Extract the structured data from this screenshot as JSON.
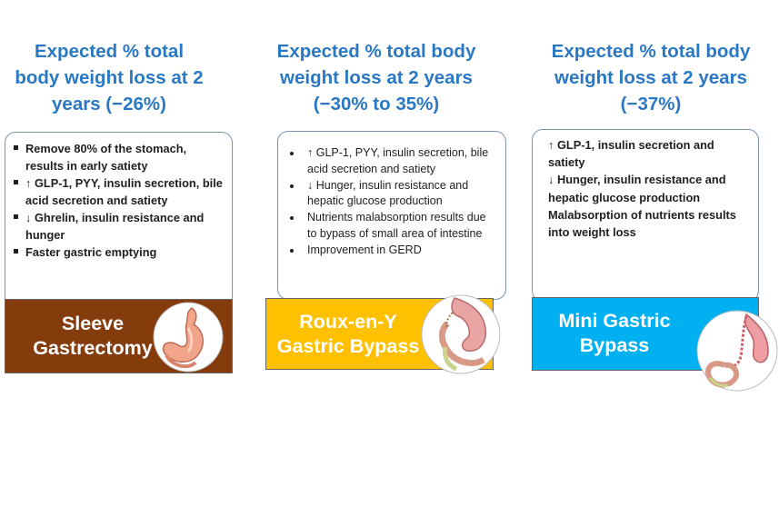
{
  "columns": [
    {
      "heading": [
        "Expected % total",
        "body weight loss at 2",
        "years (−26%)"
      ],
      "points": [
        "Remove 80% of the stomach, results in early satiety",
        "↑ GLP-1, PYY, insulin secretion, bile acid secretion and satiety",
        "↓ Ghrelin, insulin resistance and hunger",
        "Faster gastric emptying"
      ],
      "banner": [
        "Sleeve",
        "Gastrectomy"
      ],
      "banner_color": "#843c0c",
      "icon": "stomach-icon"
    },
    {
      "heading": [
        "Expected % total body",
        "weight loss at 2 years",
        "(−30% to 35%)"
      ],
      "points": [
        "↑ GLP-1, PYY, insulin secretion, bile acid secretion and satiety",
        "↓ Hunger, insulin resistance and hepatic glucose production",
        "Nutrients malabsorption results due to bypass of small area of intestine",
        "Improvement in GERD"
      ],
      "banner": [
        "Roux-en-Y",
        "Gastric Bypass"
      ],
      "banner_color": "#ffc000",
      "icon": "gastric-bypass-icon"
    },
    {
      "heading": [
        "Expected % total body",
        "weight loss at 2 years",
        "(−37%)"
      ],
      "points": [
        "↑ GLP-1, insulin secretion and satiety",
        "↓ Hunger, insulin resistance and hepatic glucose production",
        "Malabsorption of nutrients results into weight loss"
      ],
      "banner": [
        "Mini Gastric",
        "Bypass"
      ],
      "banner_color": "#00b0f0",
      "icon": "mini-gastric-bypass-icon"
    }
  ]
}
